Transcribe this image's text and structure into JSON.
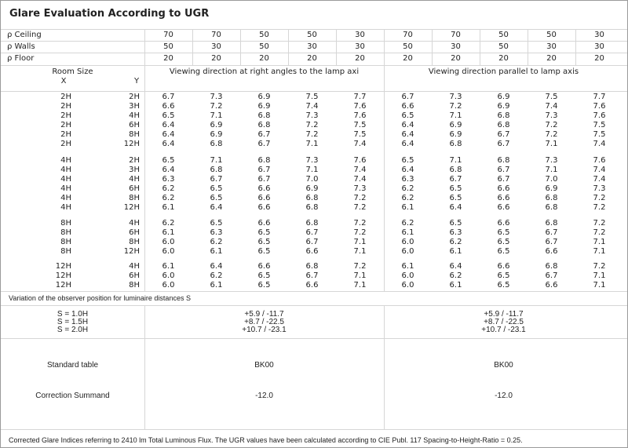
{
  "title": "Glare Evaluation According to UGR",
  "reflectances": [
    {
      "label": "ρ  Ceiling",
      "values": [
        "70",
        "70",
        "50",
        "50",
        "30",
        "70",
        "70",
        "50",
        "50",
        "30"
      ]
    },
    {
      "label": "ρ  Walls",
      "values": [
        "50",
        "30",
        "50",
        "30",
        "30",
        "50",
        "30",
        "50",
        "30",
        "30"
      ]
    },
    {
      "label": "ρ  Floor",
      "values": [
        "20",
        "20",
        "20",
        "20",
        "20",
        "20",
        "20",
        "20",
        "20",
        "20"
      ]
    }
  ],
  "room_size": {
    "label": "Room Size",
    "x": "X",
    "y": "Y"
  },
  "directions": [
    "Viewing direction at right angles to the lamp axi",
    "Viewing direction parallel to lamp axis"
  ],
  "groups": [
    [
      {
        "x": "2H",
        "y": "2H",
        "v": [
          "6.7",
          "7.3",
          "6.9",
          "7.5",
          "7.7",
          "6.7",
          "7.3",
          "6.9",
          "7.5",
          "7.7"
        ]
      },
      {
        "x": "2H",
        "y": "3H",
        "v": [
          "6.6",
          "7.2",
          "6.9",
          "7.4",
          "7.6",
          "6.6",
          "7.2",
          "6.9",
          "7.4",
          "7.6"
        ]
      },
      {
        "x": "2H",
        "y": "4H",
        "v": [
          "6.5",
          "7.1",
          "6.8",
          "7.3",
          "7.6",
          "6.5",
          "7.1",
          "6.8",
          "7.3",
          "7.6"
        ]
      },
      {
        "x": "2H",
        "y": "6H",
        "v": [
          "6.4",
          "6.9",
          "6.8",
          "7.2",
          "7.5",
          "6.4",
          "6.9",
          "6.8",
          "7.2",
          "7.5"
        ]
      },
      {
        "x": "2H",
        "y": "8H",
        "v": [
          "6.4",
          "6.9",
          "6.7",
          "7.2",
          "7.5",
          "6.4",
          "6.9",
          "6.7",
          "7.2",
          "7.5"
        ]
      },
      {
        "x": "2H",
        "y": "12H",
        "v": [
          "6.4",
          "6.8",
          "6.7",
          "7.1",
          "7.4",
          "6.4",
          "6.8",
          "6.7",
          "7.1",
          "7.4"
        ]
      }
    ],
    [
      {
        "x": "4H",
        "y": "2H",
        "v": [
          "6.5",
          "7.1",
          "6.8",
          "7.3",
          "7.6",
          "6.5",
          "7.1",
          "6.8",
          "7.3",
          "7.6"
        ]
      },
      {
        "x": "4H",
        "y": "3H",
        "v": [
          "6.4",
          "6.8",
          "6.7",
          "7.1",
          "7.4",
          "6.4",
          "6.8",
          "6.7",
          "7.1",
          "7.4"
        ]
      },
      {
        "x": "4H",
        "y": "4H",
        "v": [
          "6.3",
          "6.7",
          "6.7",
          "7.0",
          "7.4",
          "6.3",
          "6.7",
          "6.7",
          "7.0",
          "7.4"
        ]
      },
      {
        "x": "4H",
        "y": "6H",
        "v": [
          "6.2",
          "6.5",
          "6.6",
          "6.9",
          "7.3",
          "6.2",
          "6.5",
          "6.6",
          "6.9",
          "7.3"
        ]
      },
      {
        "x": "4H",
        "y": "8H",
        "v": [
          "6.2",
          "6.5",
          "6.6",
          "6.8",
          "7.2",
          "6.2",
          "6.5",
          "6.6",
          "6.8",
          "7.2"
        ]
      },
      {
        "x": "4H",
        "y": "12H",
        "v": [
          "6.1",
          "6.4",
          "6.6",
          "6.8",
          "7.2",
          "6.1",
          "6.4",
          "6.6",
          "6.8",
          "7.2"
        ]
      }
    ],
    [
      {
        "x": "8H",
        "y": "4H",
        "v": [
          "6.2",
          "6.5",
          "6.6",
          "6.8",
          "7.2",
          "6.2",
          "6.5",
          "6.6",
          "6.8",
          "7.2"
        ]
      },
      {
        "x": "8H",
        "y": "6H",
        "v": [
          "6.1",
          "6.3",
          "6.5",
          "6.7",
          "7.2",
          "6.1",
          "6.3",
          "6.5",
          "6.7",
          "7.2"
        ]
      },
      {
        "x": "8H",
        "y": "8H",
        "v": [
          "6.0",
          "6.2",
          "6.5",
          "6.7",
          "7.1",
          "6.0",
          "6.2",
          "6.5",
          "6.7",
          "7.1"
        ]
      },
      {
        "x": "8H",
        "y": "12H",
        "v": [
          "6.0",
          "6.1",
          "6.5",
          "6.6",
          "7.1",
          "6.0",
          "6.1",
          "6.5",
          "6.6",
          "7.1"
        ]
      }
    ],
    [
      {
        "x": "12H",
        "y": "4H",
        "v": [
          "6.1",
          "6.4",
          "6.6",
          "6.8",
          "7.2",
          "6.1",
          "6.4",
          "6.6",
          "6.8",
          "7.2"
        ]
      },
      {
        "x": "12H",
        "y": "6H",
        "v": [
          "6.0",
          "6.2",
          "6.5",
          "6.7",
          "7.1",
          "6.0",
          "6.2",
          "6.5",
          "6.7",
          "7.1"
        ]
      },
      {
        "x": "12H",
        "y": "8H",
        "v": [
          "6.0",
          "6.1",
          "6.5",
          "6.6",
          "7.1",
          "6.0",
          "6.1",
          "6.5",
          "6.6",
          "7.1"
        ]
      }
    ]
  ],
  "variation": {
    "heading": "Variation of the observer position for luminaire distances S",
    "labels": [
      "S = 1.0H",
      "S = 1.5H",
      "S = 2.0H"
    ],
    "right_angles": [
      "+5.9 / -11.7",
      "+8.7 / -22.5",
      "+10.7 / -23.1"
    ],
    "parallel": [
      "+5.9 / -11.7",
      "+8.7 / -22.5",
      "+10.7 / -23.1"
    ]
  },
  "standard_table": {
    "label": "Standard table",
    "values": [
      "BK00",
      "BK00"
    ]
  },
  "correction": {
    "label": "Correction Summand",
    "values": [
      "-12.0",
      "-12.0"
    ]
  },
  "footer": "Corrected Glare Indices referring to 2410 lm Total Luminous Flux. The UGR values have been calculated according to CIE Publ. 117    Spacing-to-Height-Ratio = 0.25."
}
